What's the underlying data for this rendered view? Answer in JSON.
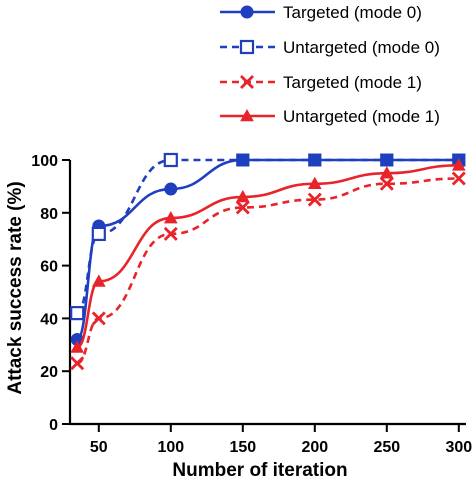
{
  "chart_data": {
    "type": "line",
    "title": "",
    "xlabel": "Number of iteration",
    "ylabel": "Attack success rate (%)",
    "xlim": [
      30,
      305
    ],
    "ylim": [
      0,
      100
    ],
    "xticks": [
      50,
      100,
      150,
      200,
      250,
      300
    ],
    "yticks": [
      0,
      20,
      40,
      60,
      80,
      100
    ],
    "grid": false,
    "legend_position": "top-right",
    "x": [
      35,
      50,
      100,
      150,
      200,
      250,
      300
    ],
    "series": [
      {
        "name": "Targeted (mode 0)",
        "values": [
          32,
          75,
          89,
          100,
          100,
          100,
          100
        ],
        "color": "#1f3fbf",
        "line": "solid",
        "marker": "circle"
      },
      {
        "name": "Untargeted (mode 0)",
        "values": [
          42,
          72,
          100,
          100,
          100,
          100,
          100
        ],
        "color": "#1f3fbf",
        "line": "dashed",
        "marker": "square-open"
      },
      {
        "name": "Targeted (mode 1)",
        "values": [
          23,
          40,
          72,
          82,
          85,
          91,
          93
        ],
        "color": "#e8242a",
        "line": "dashed",
        "marker": "x"
      },
      {
        "name": "Untargeted (mode 1)",
        "values": [
          29,
          54,
          78,
          86,
          91,
          95,
          98
        ],
        "color": "#e8242a",
        "line": "solid",
        "marker": "triangle"
      }
    ]
  }
}
